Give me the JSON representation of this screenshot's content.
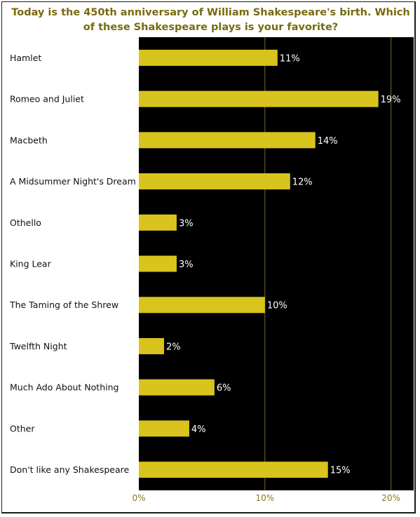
{
  "chart_data": {
    "type": "bar",
    "orientation": "horizontal",
    "title": "Today is the 450th anniversary of William Shakespeare's birth. Which of these Shakespeare plays is your favorite?",
    "categories": [
      "Hamlet",
      "Romeo and Juliet",
      "Macbeth",
      "A Midsummer Night's Dream",
      "Othello",
      "King Lear",
      "The Taming of the Shrew",
      "Twelfth Night",
      "Much Ado About Nothing",
      "Other",
      "Don't like any Shakespeare"
    ],
    "values": [
      11,
      19,
      14,
      12,
      3,
      3,
      10,
      2,
      6,
      4,
      15
    ],
    "value_labels": [
      "11%",
      "19%",
      "14%",
      "12%",
      "3%",
      "3%",
      "10%",
      "2%",
      "6%",
      "4%",
      "15%"
    ],
    "xlim": [
      0,
      21.8
    ],
    "xticks": [
      0,
      10,
      20
    ],
    "xtick_labels": [
      "0%",
      "10%",
      "20%"
    ],
    "xlabel": "",
    "ylabel": "",
    "grid": true,
    "legend": "none",
    "colors": {
      "bar": "#d8c41c",
      "plot_background": "#000000",
      "gridline": "#7a6a20",
      "title": "#7a6a10",
      "value_label": "#ffffff",
      "category_label": "#111111",
      "tick_label": "#8a7a1a"
    }
  }
}
